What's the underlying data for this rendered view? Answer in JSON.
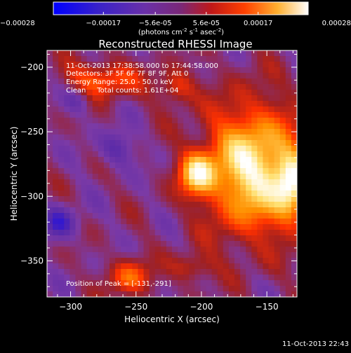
{
  "colorbar": {
    "ticks": [
      "-0.00028",
      "-0.00017",
      "-5.6e-05",
      "5.6e-05",
      "0.00017",
      "0.00028"
    ],
    "unit_main": "(photons cm",
    "unit_sup1": "-2",
    "unit_mid1": " s",
    "unit_sup2": "-1",
    "unit_mid2": " asec",
    "unit_sup3": "-2",
    "unit_end": ")",
    "range": [
      -0.00028,
      0.00028
    ]
  },
  "info": {
    "line1": "11-Oct-2013 17:38:58.000 to 17:44:58.000",
    "line2": "Detectors: 3F 5F 6F 7F 8F 9F, Att 0",
    "line3": "Energy Range: 25.0 - 50.0 keV",
    "line4": "Clean     Total counts: 1.61E+04",
    "peak": "Position of Peak = [-131,-291]"
  },
  "footer": {
    "timestamp": "11-Oct-2013 22:43"
  },
  "chart_data": {
    "type": "heatmap",
    "title": "Reconstructed RHESSI Image",
    "xlabel": "Heliocentric X (arcsec)",
    "ylabel": "Heliocentric Y (arcsec)",
    "xlim": [
      -318,
      -127
    ],
    "ylim": [
      -378,
      -187
    ],
    "x_ticks": [
      -300,
      -250,
      -200,
      -150
    ],
    "y_ticks": [
      -200,
      -250,
      -300,
      -350
    ],
    "x_tick_labels": [
      "−300",
      "−250",
      "−200",
      "−150"
    ],
    "y_tick_labels": [
      "−200",
      "−250",
      "−300",
      "−350"
    ],
    "peak": [
      -131,
      -291
    ],
    "colormap": [
      "#0000ff",
      "#5a2aa8",
      "#7b3aa6",
      "#a02020",
      "#ff3000",
      "#ff9000",
      "#ffe070",
      "#ffffff"
    ]
  }
}
